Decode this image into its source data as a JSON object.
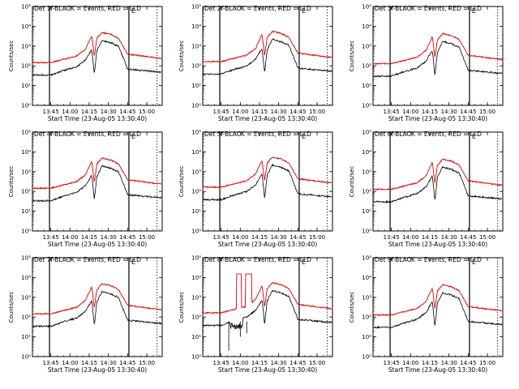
{
  "colors": {
    "events": "#000000",
    "lld": "#e00000",
    "axes": "#000000",
    "background": "#ffffff"
  },
  "shared": {
    "ylabel": "Counts/sec",
    "xlabel": "Start Time (23-Aug-05 13:30:40)",
    "xticks": [
      "13:45",
      "14:00",
      "14:15",
      "14:30",
      "14:45",
      "15:00"
    ],
    "yticks": [
      "10⁰",
      "10¹",
      "10²",
      "10³",
      "10⁴",
      "10⁵"
    ],
    "flag": "E"
  },
  "chart_data": [
    {
      "type": "line",
      "title": "Det 1f-BLACK = Events, RED = LLD",
      "detector": 1,
      "xlim": [
        "13:30:40",
        "15:12"
      ],
      "ylim": [
        1,
        100000
      ],
      "yscale": "log"
    },
    {
      "type": "line",
      "title": "Det 2f-BLACK = Events, RED = LLD",
      "detector": 2,
      "xlim": [
        "13:30:40",
        "15:12"
      ],
      "ylim": [
        1,
        100000
      ],
      "yscale": "log"
    },
    {
      "type": "line",
      "title": "Det 3f-BLACK = Events, RED = LLD",
      "detector": 3,
      "xlim": [
        "13:30:40",
        "15:12"
      ],
      "ylim": [
        1,
        100000
      ],
      "yscale": "log"
    },
    {
      "type": "line",
      "title": "Det 4f-BLACK = Events, RED = LLD",
      "detector": 4,
      "xlim": [
        "13:30:40",
        "15:12"
      ],
      "ylim": [
        1,
        100000
      ],
      "yscale": "log"
    },
    {
      "type": "line",
      "title": "Det 5f-BLACK = Events, RED = LLD",
      "detector": 5,
      "xlim": [
        "13:30:40",
        "15:12"
      ],
      "ylim": [
        1,
        100000
      ],
      "yscale": "log"
    },
    {
      "type": "line",
      "title": "Det 6f-BLACK = Events, RED = LLD",
      "detector": 6,
      "xlim": [
        "13:30:40",
        "15:12"
      ],
      "ylim": [
        1,
        100000
      ],
      "yscale": "log"
    },
    {
      "type": "line",
      "title": "Det 7f-BLACK = Events, RED = LLD",
      "detector": 7,
      "xlim": [
        "13:30:40",
        "15:12"
      ],
      "ylim": [
        1,
        100000
      ],
      "yscale": "log"
    },
    {
      "type": "line",
      "title": "Det 8f-BLACK = Events, RED = LLD",
      "detector": 8,
      "xlim": [
        "13:30:40",
        "15:12"
      ],
      "ylim": [
        1,
        100000
      ],
      "yscale": "log"
    },
    {
      "type": "line",
      "title": "Det 9f-BLACK = Events, RED = LLD",
      "detector": 9,
      "xlim": [
        "13:30:40",
        "15:12"
      ],
      "ylim": [
        1,
        100000
      ],
      "yscale": "log"
    }
  ],
  "series_profile": {
    "x": [
      "13:30:40",
      "13:45",
      "13:55",
      "14:05",
      "14:12",
      "14:17",
      "14:19",
      "14:21",
      "14:25",
      "14:32",
      "14:38",
      "14:45",
      "15:10"
    ],
    "events": [
      35,
      35,
      60,
      90,
      200,
      700,
      40,
      600,
      2000,
      1500,
      1000,
      70,
      50
    ],
    "lld": [
      150,
      150,
      220,
      320,
      700,
      3500,
      300,
      2500,
      5000,
      4000,
      2500,
      400,
      250
    ]
  }
}
